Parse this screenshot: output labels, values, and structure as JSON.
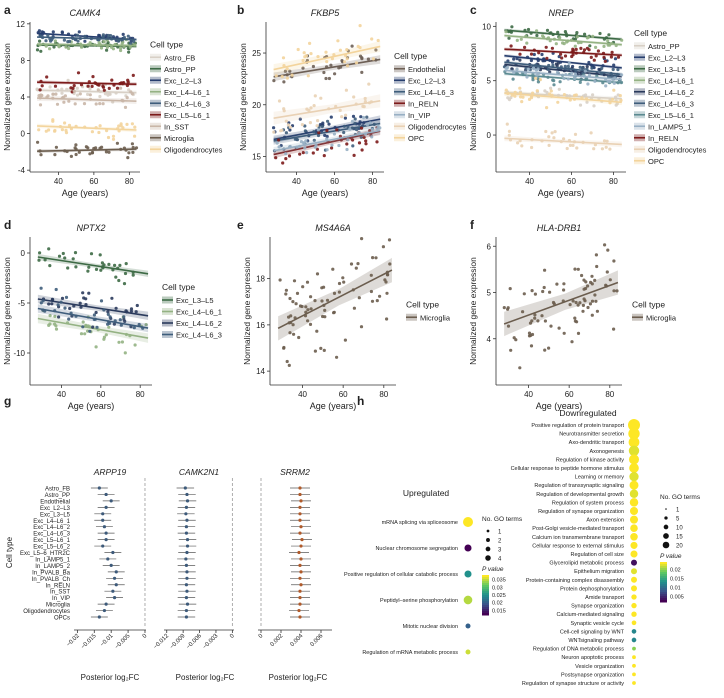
{
  "figure": {
    "panel_letters": [
      "a",
      "b",
      "c",
      "d",
      "e",
      "f",
      "g",
      "h"
    ]
  },
  "chart_data": [
    {
      "panel": "a",
      "type": "scatter",
      "title": "CAMK4",
      "xlabel": "Age (years)",
      "ylabel": "Normalized gene expression",
      "xlim": [
        24,
        86
      ],
      "ylim": [
        -4.2,
        12.2
      ],
      "xticks": [
        40,
        60,
        80
      ],
      "yticks": [
        -4,
        0,
        4,
        8,
        12
      ],
      "legend_title": "Cell type",
      "trend": "linear fit with 95% CI",
      "series": [
        {
          "name": "Astro_FB",
          "color": "#d8d0c6",
          "center": 4.6,
          "slope": -0.005,
          "spread": 0.45
        },
        {
          "name": "Astro_PP",
          "color": "#3d6a45",
          "center": 9.6,
          "slope": -0.003,
          "spread": 0.25
        },
        {
          "name": "Exc_L2–L3",
          "color": "#273e6e",
          "center": 10.6,
          "slope": -0.012,
          "spread": 0.2
        },
        {
          "name": "Exc_L4–L6_1",
          "color": "#94b283",
          "center": 9.7,
          "slope": -0.003,
          "spread": 0.3
        },
        {
          "name": "Exc_L4–L6_3",
          "color": "#3e5d7b",
          "center": 10.4,
          "slope": -0.005,
          "spread": 0.2
        },
        {
          "name": "Exc_L5–L6_1",
          "color": "#7c1a1a",
          "center": 5.5,
          "slope": -0.004,
          "spread": 0.4
        },
        {
          "name": "In_SST",
          "color": "#c9b6a7",
          "center": 3.7,
          "slope": -0.006,
          "spread": 0.6
        },
        {
          "name": "Microglia",
          "color": "#6b5d4e",
          "center": -1.8,
          "slope": 0.004,
          "spread": 0.4
        },
        {
          "name": "Oligodendrocytes",
          "color": "#f3d49c",
          "center": 0.6,
          "slope": -0.008,
          "spread": 0.45
        }
      ]
    },
    {
      "panel": "b",
      "type": "scatter",
      "title": "FKBP5",
      "xlabel": "Age (years)",
      "ylabel": "Normalized gene expression",
      "xlim": [
        24,
        86
      ],
      "ylim": [
        13.5,
        28
      ],
      "xticks": [
        40,
        60,
        80
      ],
      "yticks": [
        15,
        20,
        25
      ],
      "legend_title": "Cell type",
      "trend": "linear fit with 95% CI",
      "series": [
        {
          "name": "Endothelial",
          "color": "#6d5f55",
          "center": 23.6,
          "slope": 0.03,
          "spread": 0.8
        },
        {
          "name": "Exc_L2–L3",
          "color": "#273e6e",
          "center": 17.7,
          "slope": 0.035,
          "spread": 0.7
        },
        {
          "name": "Exc_L4–L6_3",
          "color": "#3e5d7b",
          "center": 17.4,
          "slope": 0.03,
          "spread": 0.7
        },
        {
          "name": "In_RELN",
          "color": "#7c1a1a",
          "center": 16.4,
          "slope": 0.04,
          "spread": 0.7
        },
        {
          "name": "In_VIP",
          "color": "#98b0c4",
          "center": 16.6,
          "slope": 0.035,
          "spread": 0.7
        },
        {
          "name": "Oligodendrocytes",
          "color": "#e9d1b4",
          "center": 19.6,
          "slope": 0.03,
          "spread": 1.2
        },
        {
          "name": "OPC",
          "color": "#f3d49c",
          "center": 24.6,
          "slope": 0.04,
          "spread": 1.0
        }
      ]
    },
    {
      "panel": "c",
      "type": "scatter",
      "title": "NREP",
      "xlabel": "Age (years)",
      "ylabel": "Normalized gene expression",
      "xlim": [
        24,
        86
      ],
      "ylim": [
        -3.4,
        10.4
      ],
      "xticks": [
        40,
        60,
        80
      ],
      "yticks": [
        0,
        5,
        10
      ],
      "legend_title": "Cell type",
      "trend": "linear fit with 95% CI",
      "series": [
        {
          "name": "Astro_PP",
          "color": "#d8d0c6",
          "center": 3.6,
          "slope": -0.01,
          "spread": 0.4
        },
        {
          "name": "Exc_L2–L3",
          "color": "#273e6e",
          "center": 6.7,
          "slope": -0.02,
          "spread": 0.3
        },
        {
          "name": "Exc_L3–L5",
          "color": "#3d6a45",
          "center": 9.2,
          "slope": -0.015,
          "spread": 0.3
        },
        {
          "name": "Exc_L4–L6_1",
          "color": "#94b283",
          "center": 8.7,
          "slope": -0.015,
          "spread": 0.3
        },
        {
          "name": "Exc_L4–L6_2",
          "color": "#2a3a5c",
          "center": 5.9,
          "slope": -0.02,
          "spread": 0.3
        },
        {
          "name": "Exc_L4–L6_3",
          "color": "#3e5d7b",
          "center": 6.1,
          "slope": -0.02,
          "spread": 0.3
        },
        {
          "name": "Exc_L5–L6_1",
          "color": "#5b8a91",
          "center": 5.2,
          "slope": -0.015,
          "spread": 0.3
        },
        {
          "name": "In_LAMP5_1",
          "color": "#98b0c4",
          "center": 5.5,
          "slope": -0.015,
          "spread": 0.4
        },
        {
          "name": "In_RELN",
          "color": "#7c1a1a",
          "center": 7.6,
          "slope": -0.01,
          "spread": 0.3
        },
        {
          "name": "Oligodendrocytes",
          "color": "#e9d1b4",
          "center": -0.6,
          "slope": -0.01,
          "spread": 0.5
        },
        {
          "name": "OPC",
          "color": "#f3d49c",
          "center": 3.4,
          "slope": -0.015,
          "spread": 0.5
        }
      ]
    },
    {
      "panel": "d",
      "type": "scatter",
      "title": "NPTX2",
      "xlabel": "Age (years)",
      "ylabel": "Normalized gene expression",
      "xlim": [
        24,
        86
      ],
      "ylim": [
        -13.2,
        1.6
      ],
      "xticks": [
        40,
        60,
        80
      ],
      "yticks": [
        -10,
        -5,
        0
      ],
      "legend_title": "Cell type",
      "trend": "linear fit with 95% CI",
      "series": [
        {
          "name": "Exc_L3–L5",
          "color": "#3d6a45",
          "center": -1.3,
          "slope": -0.03,
          "spread": 0.6
        },
        {
          "name": "Exc_L4–L6_1",
          "color": "#94b283",
          "center": -7.6,
          "slope": -0.035,
          "spread": 0.9
        },
        {
          "name": "Exc_L4–L6_2",
          "color": "#2a3a5c",
          "center": -5.5,
          "slope": -0.03,
          "spread": 0.8
        },
        {
          "name": "Exc_L4–L6_3",
          "color": "#3e5d7b",
          "center": -6.6,
          "slope": -0.035,
          "spread": 0.8
        }
      ]
    },
    {
      "panel": "e",
      "type": "scatter",
      "title": "MS4A6A",
      "xlabel": "Age (years)",
      "ylabel": "Normalized gene expression",
      "xlim": [
        24,
        86
      ],
      "ylim": [
        13.4,
        19.8
      ],
      "xticks": [
        40,
        60,
        80
      ],
      "yticks": [
        14,
        16,
        18
      ],
      "legend_title": "Cell type",
      "trend": "linear fit with 95% CI",
      "series": [
        {
          "name": "Microglia",
          "color": "#6b5d4e",
          "center": 17.2,
          "slope": 0.045,
          "spread": 1.0
        }
      ]
    },
    {
      "panel": "f",
      "type": "scatter",
      "title": "HLA-DRB1",
      "xlabel": "Age (years)",
      "ylabel": "Normalized gene expression",
      "xlim": [
        24,
        86
      ],
      "ylim": [
        3.0,
        6.2
      ],
      "xticks": [
        40,
        60,
        80
      ],
      "yticks": [
        4,
        5,
        6
      ],
      "legend_title": "Cell type",
      "trend": "linear fit with 95% CI",
      "series": [
        {
          "name": "Microglia",
          "color": "#6b5d4e",
          "center": 4.8,
          "slope": 0.016,
          "spread": 0.5
        }
      ]
    },
    {
      "panel": "g",
      "type": "forest",
      "ylabel": "Cell type",
      "xlabel": "Posterior log₂FC",
      "cell_types": [
        "Astro_FB",
        "Astro_PP",
        "Endothelial",
        "Exc_L2–L3",
        "Exc_L3–L5",
        "Exc_L4–L6_1",
        "Exc_L4–L6_2",
        "Exc_L4–L6_3",
        "Exc_L5–L6_1",
        "Exc_L5–L6_2",
        "Exc_L5–6_HTR2C",
        "In_LAMP5_1",
        "In_LAMP5_2",
        "In_PVALB_Ba",
        "In_PVALB_Ch",
        "In_RELN",
        "In_SST",
        "In_VIP",
        "Microglia",
        "Oligodendrocytes",
        "OPCs"
      ],
      "subplots": [
        {
          "gene": "ARPP19",
          "xlim": [
            -0.021,
            0.0003
          ],
          "xticks": [
            -0.02,
            -0.015,
            -0.01,
            -0.005,
            0
          ],
          "estimates": [
            -0.0135,
            -0.0115,
            -0.01,
            -0.0115,
            -0.0125,
            -0.0125,
            -0.012,
            -0.0115,
            -0.0115,
            -0.0125,
            -0.0095,
            -0.011,
            -0.01,
            -0.0085,
            -0.009,
            -0.0085,
            -0.0095,
            -0.009,
            -0.0115,
            -0.012,
            -0.0135
          ],
          "ci_half": 0.0025,
          "point_color": "#3d5a7a",
          "line_color": "#5a5a5a"
        },
        {
          "gene": "CAMK2N1",
          "xlim": [
            -0.0125,
            0.0003
          ],
          "xticks": [
            -0.012,
            -0.009,
            -0.006,
            -0.003,
            0
          ],
          "estimates": [
            -0.0086,
            -0.0083,
            -0.0082,
            -0.0084,
            -0.0085,
            -0.0083,
            -0.0084,
            -0.0084,
            -0.0082,
            -0.0082,
            -0.0083,
            -0.0085,
            -0.0084,
            -0.0083,
            -0.0083,
            -0.0084,
            -0.0083,
            -0.0084,
            -0.0082,
            -0.0084,
            -0.0084
          ],
          "ci_half": 0.0016,
          "point_color": "#3d5a7a",
          "line_color": "#5a5a5a"
        },
        {
          "gene": "SRRM2",
          "xlim": [
            -0.0003,
            0.0071
          ],
          "xticks": [
            0,
            0.002,
            0.004,
            0.006
          ],
          "estimates": [
            0.0039,
            0.0039,
            0.004,
            0.0039,
            0.0039,
            0.0039,
            0.004,
            0.0039,
            0.0041,
            0.004,
            0.0038,
            0.004,
            0.0039,
            0.004,
            0.0039,
            0.004,
            0.0039,
            0.0039,
            0.0039,
            0.0038,
            0.0039
          ],
          "ci_half": 0.001,
          "point_color": "#b05a2a",
          "line_color": "#5a5a5a"
        }
      ]
    },
    {
      "panel": "h",
      "type": "bubble",
      "upregulated": {
        "title": "Upregulated",
        "terms": [
          "mRNA splicing via spliceosome",
          "Nuclear chromosome segregation",
          "Positive regulation of cellular catabolic process",
          "Peptidyl–serine phosphorylation",
          "Mitotic nuclear division",
          "Regulation of mRNA metabolic process"
        ],
        "go_terms": [
          4,
          2,
          2,
          3,
          1,
          1
        ],
        "pvalues": [
          0.038,
          0.005,
          0.025,
          0.035,
          0.02,
          0.036
        ],
        "legend_size_title": "No. GO terms",
        "size_ticks": [
          1,
          2,
          3,
          4
        ],
        "legend_color_title": "P value",
        "color_ticks": [
          0.035,
          0.03,
          0.025,
          0.02,
          0.015
        ],
        "color_range": [
          0.012,
          0.038
        ]
      },
      "downregulated": {
        "title": "Downregulated",
        "terms": [
          "Positive regulation of protein transport",
          "Neurotransmitter secretion",
          "Axo-dendritic transport",
          "Axonogenesis",
          "Regulation of kinase activity",
          "Cellular response to peptide hormone stimulus",
          "Learning or memory",
          "Regulation of transsynaptic signaling",
          "Regulation of developmental growth",
          "Regulation of system process",
          "Regulation of synapse organization",
          "Axon extension",
          "Post-Golgi vesicle-mediated transport",
          "Calcium ion transmembrane transport",
          "Cellular response to external stimulus",
          "Regulation of cell size",
          "Glycerolipid metabolic process",
          "Epithelium migration",
          "Protein-containing complex disassembly",
          "Protein dephosphorylation",
          "Amide transport",
          "Synapse organization",
          "Calcium-mediated signaling",
          "Synaptic vesicle cycle",
          "Cell-cell signaling by WNT",
          "WNTsignaling pathway",
          "Regulation of DNA metabolic process",
          "Neuron apoptotic process",
          "Vesicle organization",
          "Postsynapse organization",
          "Regulation of synapse structure or activity"
        ],
        "go_terms": [
          20,
          18,
          16,
          15,
          14,
          13,
          12,
          11,
          10,
          10,
          9,
          9,
          8,
          8,
          7,
          7,
          5,
          5,
          5,
          5,
          4,
          4,
          4,
          3,
          3,
          3,
          2,
          2,
          2,
          2,
          2
        ],
        "pvalues": [
          0.024,
          0.024,
          0.024,
          0.023,
          0.024,
          0.024,
          0.023,
          0.024,
          0.023,
          0.024,
          0.024,
          0.024,
          0.024,
          0.024,
          0.024,
          0.024,
          0.003,
          0.023,
          0.024,
          0.024,
          0.024,
          0.024,
          0.024,
          0.024,
          0.012,
          0.012,
          0.02,
          0.024,
          0.024,
          0.024,
          0.024
        ],
        "legend_size_title": "No. GO terms",
        "size_ticks": [
          1,
          5,
          10,
          15,
          20
        ],
        "legend_color_title": "P value",
        "color_ticks": [
          0.02,
          0.015,
          0.01,
          0.005
        ],
        "color_range": [
          0.002,
          0.024
        ]
      }
    }
  ]
}
